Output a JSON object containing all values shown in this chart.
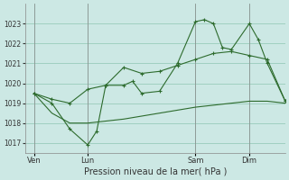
{
  "background_color": "#cce8e4",
  "grid_color": "#99ccbb",
  "line_color": "#2d6b2d",
  "xlabel": "Pression niveau de la mer( hPa )",
  "ylim": [
    1016.5,
    1024.0
  ],
  "yticks": [
    1017,
    1018,
    1019,
    1020,
    1021,
    1022,
    1023
  ],
  "day_labels": [
    "Ven",
    "Lun",
    "Sam",
    "Dim"
  ],
  "day_positions": [
    0,
    24,
    72,
    96
  ],
  "xlim": [
    -4,
    112
  ],
  "vline_positions": [
    0,
    24,
    72,
    96
  ],
  "series1_x": [
    0,
    8,
    16,
    24,
    28,
    32,
    40,
    44,
    48,
    56,
    64,
    72,
    76,
    80,
    84,
    88,
    96,
    100,
    104,
    112
  ],
  "series1_y": [
    1019.5,
    1019.0,
    1017.7,
    1016.9,
    1017.6,
    1019.9,
    1019.9,
    1020.1,
    1019.5,
    1019.6,
    1021.0,
    1023.1,
    1023.2,
    1023.0,
    1021.8,
    1021.7,
    1023.0,
    1022.2,
    1021.0,
    1019.1
  ],
  "series2_x": [
    0,
    8,
    16,
    24,
    32,
    40,
    48,
    56,
    64,
    72,
    80,
    88,
    96,
    104,
    112
  ],
  "series2_y": [
    1019.5,
    1019.2,
    1019.0,
    1019.7,
    1019.9,
    1020.8,
    1020.5,
    1020.6,
    1020.9,
    1021.2,
    1021.5,
    1021.6,
    1021.4,
    1021.2,
    1019.1
  ],
  "series3_x": [
    0,
    8,
    16,
    24,
    32,
    40,
    48,
    56,
    64,
    72,
    80,
    88,
    96,
    104,
    112
  ],
  "series3_y": [
    1019.5,
    1018.5,
    1018.0,
    1018.0,
    1018.1,
    1018.2,
    1018.35,
    1018.5,
    1018.65,
    1018.8,
    1018.9,
    1019.0,
    1019.1,
    1019.1,
    1019.0
  ]
}
